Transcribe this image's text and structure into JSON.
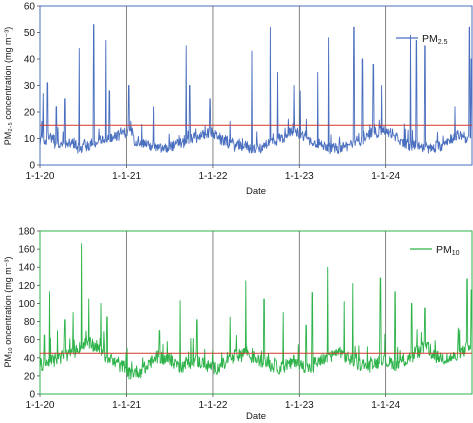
{
  "figure": {
    "panels": [
      {
        "id": "pm25",
        "legend_label": "PM",
        "legend_sub": "2.5",
        "ylabel": "PM₂.₅ concentration (mg m⁻³)",
        "xlabel": "Date",
        "line_color": "#4a6fbf",
        "reference_color": "#d33a2c"
      },
      {
        "id": "pm10",
        "legend_label": "PM",
        "legend_sub": "10",
        "ylabel": "PM₁₀ oncentration (mg m⁻³)",
        "xlabel": "Date",
        "line_color": "#2db34a",
        "reference_color": "#d33a2c"
      }
    ]
  },
  "chart_data": [
    {
      "type": "line",
      "title": "",
      "xlabel": "Date",
      "ylabel": "PM2.5 concentration (mg m-3)",
      "x_range": [
        "2020-01-01",
        "2024-12-31"
      ],
      "x_ticks": [
        "1-1-20",
        "1-1-21",
        "1-1-22",
        "1-1-23",
        "1-1-24"
      ],
      "ylim": [
        0,
        60
      ],
      "y_ticks": [
        0,
        10,
        20,
        30,
        40,
        50,
        60
      ],
      "vertical_gridlines": true,
      "legend_position": "top-right",
      "reference_line": 15,
      "series": [
        {
          "name": "PM2.5",
          "sampling": "monthly representative values (daily series; peaks noted separately)",
          "values": [
            9,
            10,
            8,
            7,
            8,
            6,
            7,
            8,
            9,
            10,
            11,
            12,
            12,
            9,
            8,
            7,
            6,
            6,
            7,
            8,
            9,
            10,
            11,
            12,
            11,
            9,
            8,
            7,
            7,
            6,
            6,
            8,
            9,
            10,
            12,
            12,
            11,
            9,
            8,
            7,
            6,
            6,
            7,
            8,
            9,
            10,
            12,
            13,
            12,
            10,
            8,
            7,
            7,
            6,
            6,
            7,
            9,
            10,
            11,
            10
          ],
          "peaks": [
            {
              "date": "2020-01-15",
              "value": 27
            },
            {
              "date": "2020-02-01",
              "value": 31
            },
            {
              "date": "2020-03-10",
              "value": 22
            },
            {
              "date": "2020-04-15",
              "value": 25
            },
            {
              "date": "2020-06-15",
              "value": 44
            },
            {
              "date": "2020-08-15",
              "value": 53
            },
            {
              "date": "2020-10-05",
              "value": 47
            },
            {
              "date": "2020-10-20",
              "value": 28
            },
            {
              "date": "2021-01-10",
              "value": 30
            },
            {
              "date": "2021-04-25",
              "value": 22
            },
            {
              "date": "2021-09-10",
              "value": 45
            },
            {
              "date": "2021-09-25",
              "value": 30
            },
            {
              "date": "2021-12-20",
              "value": 25
            },
            {
              "date": "2022-06-15",
              "value": 43
            },
            {
              "date": "2022-09-01",
              "value": 52
            },
            {
              "date": "2022-10-01",
              "value": 35
            },
            {
              "date": "2022-12-10",
              "value": 30
            },
            {
              "date": "2023-01-05",
              "value": 28
            },
            {
              "date": "2023-03-20",
              "value": 35
            },
            {
              "date": "2023-05-05",
              "value": 48
            },
            {
              "date": "2023-08-20",
              "value": 52
            },
            {
              "date": "2023-09-25",
              "value": 40
            },
            {
              "date": "2023-11-10",
              "value": 38
            },
            {
              "date": "2023-12-15",
              "value": 30
            },
            {
              "date": "2024-04-15",
              "value": 49
            },
            {
              "date": "2024-05-10",
              "value": 47
            },
            {
              "date": "2024-06-15",
              "value": 45
            },
            {
              "date": "2024-10-20",
              "value": 22
            },
            {
              "date": "2024-12-20",
              "value": 52
            },
            {
              "date": "2024-12-28",
              "value": 40
            }
          ]
        }
      ]
    },
    {
      "type": "line",
      "title": "",
      "xlabel": "Date",
      "ylabel": "PM10 concentration (mg m-3)",
      "x_range": [
        "2020-01-01",
        "2024-12-31"
      ],
      "x_ticks": [
        "1-1-20",
        "1-1-21",
        "1-1-22",
        "1-1-23",
        "1-1-24"
      ],
      "ylim": [
        0,
        180
      ],
      "y_ticks": [
        0,
        20,
        40,
        60,
        80,
        100,
        120,
        140,
        160,
        180
      ],
      "vertical_gridlines": true,
      "legend_position": "top-right",
      "reference_line": 45,
      "series": [
        {
          "name": "PM10",
          "sampling": "monthly representative values (daily series; peaks noted separately)",
          "values": [
            32,
            36,
            38,
            42,
            46,
            50,
            55,
            52,
            48,
            40,
            34,
            30,
            22,
            24,
            28,
            35,
            40,
            38,
            34,
            30,
            34,
            36,
            34,
            30,
            28,
            32,
            38,
            42,
            46,
            40,
            36,
            34,
            30,
            28,
            32,
            36,
            30,
            28,
            34,
            38,
            42,
            46,
            40,
            36,
            32,
            30,
            34,
            38,
            34,
            32,
            36,
            40,
            46,
            50,
            44,
            40,
            38,
            40,
            46,
            50
          ],
          "peaks": [
            {
              "date": "2020-01-20",
              "value": 65
            },
            {
              "date": "2020-02-10",
              "value": 113
            },
            {
              "date": "2020-03-15",
              "value": 70
            },
            {
              "date": "2020-04-15",
              "value": 82
            },
            {
              "date": "2020-05-20",
              "value": 90
            },
            {
              "date": "2020-06-25",
              "value": 166
            },
            {
              "date": "2020-07-25",
              "value": 105
            },
            {
              "date": "2020-09-15",
              "value": 100
            },
            {
              "date": "2020-10-10",
              "value": 85
            },
            {
              "date": "2021-05-20",
              "value": 70
            },
            {
              "date": "2021-08-15",
              "value": 103
            },
            {
              "date": "2021-10-25",
              "value": 82
            },
            {
              "date": "2022-03-15",
              "value": 85
            },
            {
              "date": "2022-05-20",
              "value": 125
            },
            {
              "date": "2022-08-05",
              "value": 105
            },
            {
              "date": "2022-10-25",
              "value": 90
            },
            {
              "date": "2023-01-30",
              "value": 76
            },
            {
              "date": "2023-02-25",
              "value": 112
            },
            {
              "date": "2023-05-01",
              "value": 140
            },
            {
              "date": "2023-07-10",
              "value": 102
            },
            {
              "date": "2023-08-15",
              "value": 122
            },
            {
              "date": "2023-12-10",
              "value": 128
            },
            {
              "date": "2024-02-10",
              "value": 113
            },
            {
              "date": "2024-04-20",
              "value": 100
            },
            {
              "date": "2024-06-15",
              "value": 95
            },
            {
              "date": "2024-12-10",
              "value": 127
            },
            {
              "date": "2024-12-28",
              "value": 115
            }
          ]
        }
      ]
    }
  ]
}
